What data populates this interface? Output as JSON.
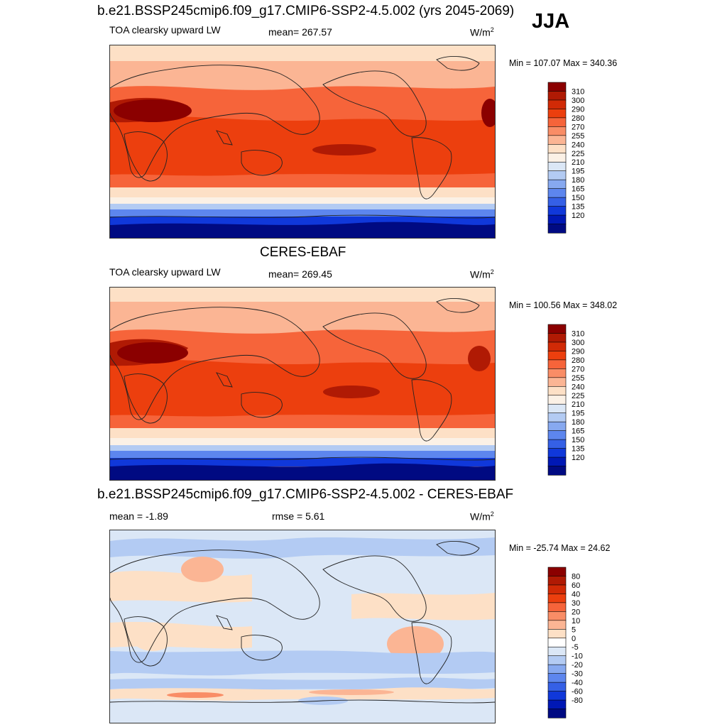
{
  "header": {
    "title": "b.e21.BSSP245cmip6.f09_g17.CMIP6-SSP2-4.5.002 (yrs 2045-2069)",
    "season": "JJA"
  },
  "panels": [
    {
      "id": "model",
      "variable": "TOA clearsky upward LW",
      "stat": "mean= 267.57",
      "units_base": "W/m",
      "units_exp": "2",
      "minmax": "Min = 107.07 Max = 340.36"
    },
    {
      "id": "obs",
      "title": "CERES-EBAF",
      "variable": "TOA clearsky upward LW",
      "stat": "mean= 269.45",
      "units_base": "W/m",
      "units_exp": "2",
      "minmax": "Min = 100.56 Max = 348.02"
    },
    {
      "id": "diff",
      "title": "b.e21.BSSP245cmip6.f09_g17.CMIP6-SSP2-4.5.002 - CERES-EBAF",
      "stat": "mean =  -1.89",
      "rmse": "rmse =   5.61",
      "units_base": "W/m",
      "units_exp": "2",
      "minmax": "Min = -25.74 Max =  24.62"
    }
  ],
  "colorbars": {
    "field": {
      "labels": [
        "310",
        "300",
        "290",
        "280",
        "270",
        "255",
        "240",
        "225",
        "210",
        "195",
        "180",
        "165",
        "150",
        "135",
        "120"
      ],
      "colors": [
        "#8b0000",
        "#b01a04",
        "#d12a06",
        "#ec3f0e",
        "#f6643a",
        "#f98d66",
        "#fbb594",
        "#fde0c6",
        "#fbf1e6",
        "#dbe7f6",
        "#b3cbf3",
        "#87a9f0",
        "#5d86ee",
        "#3560e6",
        "#1038da",
        "#0018b5",
        "#000a82"
      ]
    },
    "diff": {
      "labels": [
        "80",
        "60",
        "40",
        "30",
        "20",
        "10",
        "5",
        "0",
        "-5",
        "-10",
        "-20",
        "-30",
        "-40",
        "-60",
        "-80"
      ],
      "colors": [
        "#8b0000",
        "#b01a04",
        "#d12a06",
        "#ec3f0e",
        "#f6643a",
        "#f98d66",
        "#fbb594",
        "#fde0c6",
        "#ffffff",
        "#dbe7f6",
        "#b3cbf3",
        "#87a9f0",
        "#5d86ee",
        "#3560e6",
        "#1038da",
        "#0018b5",
        "#000a82"
      ]
    }
  }
}
